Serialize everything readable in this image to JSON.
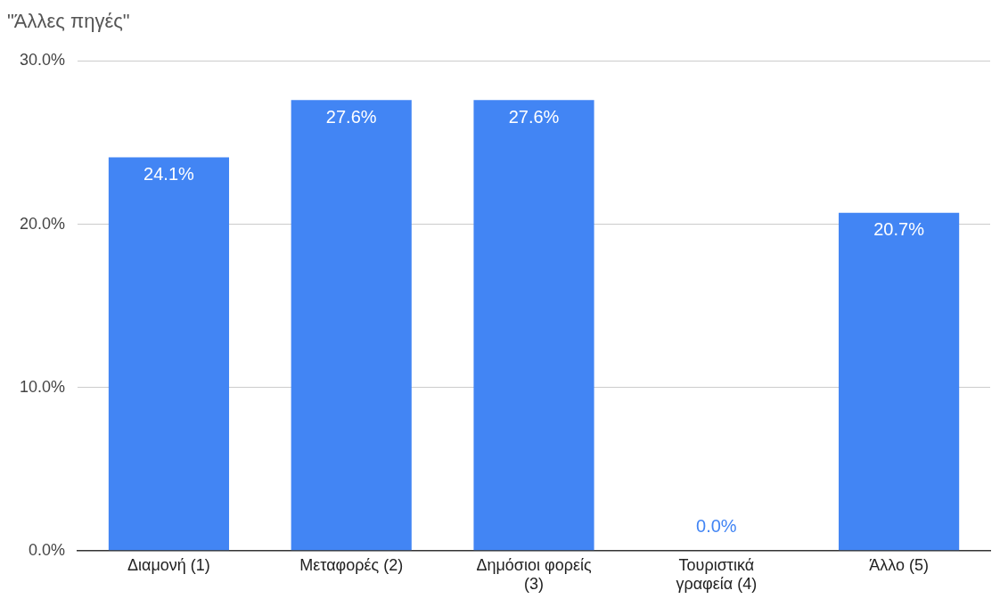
{
  "chart_data": {
    "type": "bar",
    "title": "\"Άλλες πηγές\"",
    "categories": [
      "Διαμονή (1)",
      "Μεταφορές (2)",
      "Δημόσιοι φορείς (3)",
      "Τουριστικά γραφεία (4)",
      "Άλλο (5)"
    ],
    "values": [
      24.1,
      27.6,
      27.6,
      0.0,
      20.7
    ],
    "value_labels": [
      "24.1%",
      "27.6%",
      "27.6%",
      "0.0%",
      "20.7%"
    ],
    "color": "#4285f4",
    "ylim": [
      0,
      30
    ],
    "yticks": [
      {
        "value": 0,
        "label": "0.0%"
      },
      {
        "value": 10,
        "label": "10.0%"
      },
      {
        "value": 20,
        "label": "20.0%"
      },
      {
        "value": 30,
        "label": "30.0%"
      }
    ],
    "grid": "y",
    "legend": false
  }
}
